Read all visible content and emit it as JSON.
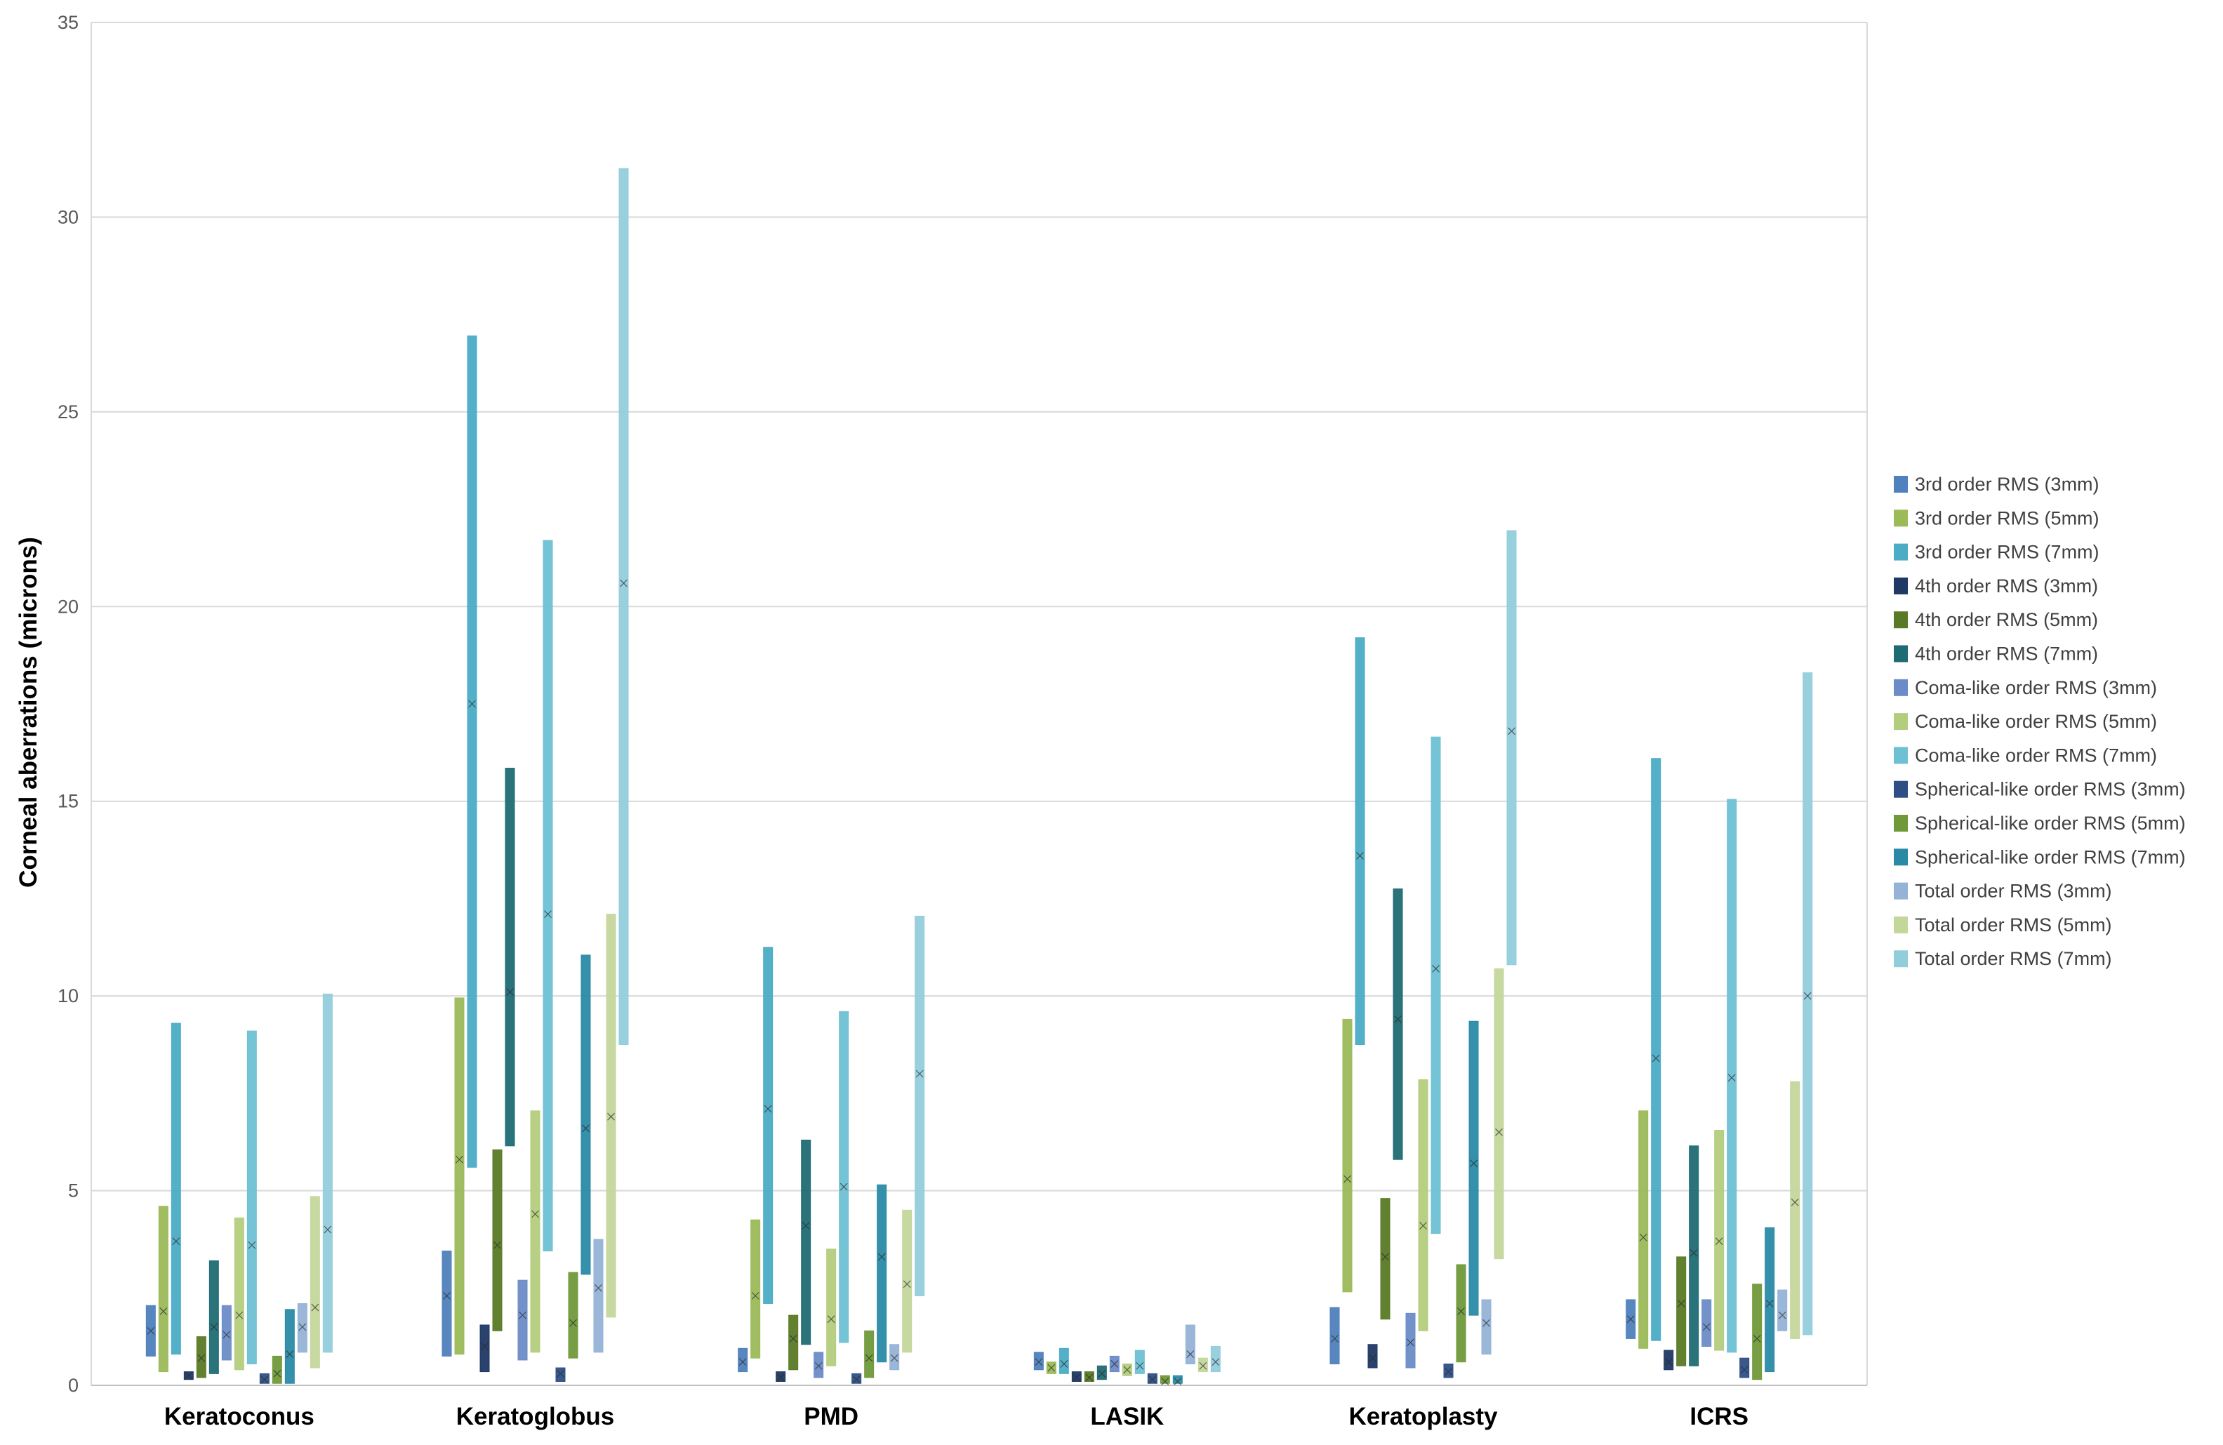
{
  "chart_data": {
    "type": "boxplot",
    "title": "",
    "xlabel": "",
    "ylabel": "Corneal aberrations (microns)",
    "ylim": [
      0,
      35
    ],
    "yticks": [
      0,
      5,
      10,
      15,
      20,
      25,
      30,
      35
    ],
    "grid": true,
    "legend_position": "right",
    "categories": [
      "Keratoconus",
      "Keratoglobus",
      "PMD",
      "LASIK",
      "Keratoplasty",
      "ICRS"
    ],
    "series": [
      {
        "name": "3rd order RMS (3mm)",
        "color": "#4f81bd",
        "ranges": [
          [
            0.75,
            2.05
          ],
          [
            0.75,
            3.45
          ],
          [
            0.35,
            0.95
          ],
          [
            0.4,
            0.85
          ],
          [
            0.55,
            2.0
          ],
          [
            1.2,
            2.2
          ]
        ],
        "means": [
          1.4,
          2.3,
          0.6,
          0.6,
          1.2,
          1.7
        ]
      },
      {
        "name": "3rd order RMS (5mm)",
        "color": "#9bbb59",
        "ranges": [
          [
            0.35,
            4.6
          ],
          [
            0.8,
            9.95
          ],
          [
            0.7,
            4.25
          ],
          [
            0.3,
            0.6
          ],
          [
            2.4,
            9.4
          ],
          [
            0.95,
            7.05
          ]
        ],
        "means": [
          1.9,
          5.8,
          2.3,
          0.45,
          5.3,
          3.8
        ]
      },
      {
        "name": "3rd order RMS (7mm)",
        "color": "#4bacc6",
        "ranges": [
          [
            0.8,
            9.3
          ],
          [
            5.6,
            26.95
          ],
          [
            2.1,
            11.25
          ],
          [
            0.3,
            0.95
          ],
          [
            8.75,
            19.2
          ],
          [
            1.15,
            16.1
          ]
        ],
        "means": [
          3.7,
          17.5,
          7.1,
          0.55,
          13.6,
          8.4
        ]
      },
      {
        "name": "4th order RMS (3mm)",
        "color": "#1f3864",
        "ranges": [
          [
            0.15,
            0.35
          ],
          [
            0.35,
            1.55
          ],
          [
            0.1,
            0.35
          ],
          [
            0.1,
            0.35
          ],
          [
            0.45,
            1.05
          ],
          [
            0.4,
            0.9
          ]
        ],
        "means": [
          0.25,
          1.0,
          0.2,
          0.2,
          0.7,
          0.6
        ]
      },
      {
        "name": "4th order RMS (5mm)",
        "color": "#5a7a25",
        "ranges": [
          [
            0.2,
            1.25
          ],
          [
            1.4,
            6.05
          ],
          [
            0.4,
            1.8
          ],
          [
            0.1,
            0.35
          ],
          [
            1.7,
            4.8
          ],
          [
            0.5,
            3.3
          ]
        ],
        "means": [
          0.7,
          3.6,
          1.2,
          0.2,
          3.3,
          2.1
        ]
      },
      {
        "name": "4th order RMS (7mm)",
        "color": "#1f6b73",
        "ranges": [
          [
            0.3,
            3.2
          ],
          [
            6.15,
            15.85
          ],
          [
            1.05,
            6.3
          ],
          [
            0.15,
            0.5
          ],
          [
            5.8,
            12.75
          ],
          [
            0.5,
            6.15
          ]
        ],
        "means": [
          1.5,
          10.1,
          4.1,
          0.3,
          9.4,
          3.4
        ]
      },
      {
        "name": "Coma-like order RMS (3mm)",
        "color": "#6b8cc7",
        "ranges": [
          [
            0.65,
            2.05
          ],
          [
            0.65,
            2.7
          ],
          [
            0.2,
            0.85
          ],
          [
            0.35,
            0.75
          ],
          [
            0.45,
            1.85
          ],
          [
            1.0,
            2.2
          ]
        ],
        "means": [
          1.3,
          1.8,
          0.5,
          0.55,
          1.1,
          1.5
        ]
      },
      {
        "name": "Coma-like order RMS (5mm)",
        "color": "#b4cd7c",
        "ranges": [
          [
            0.4,
            4.3
          ],
          [
            0.85,
            7.05
          ],
          [
            0.5,
            3.5
          ],
          [
            0.25,
            0.55
          ],
          [
            1.4,
            7.85
          ],
          [
            0.9,
            6.55
          ]
        ],
        "means": [
          1.8,
          4.4,
          1.7,
          0.4,
          4.1,
          3.7
        ]
      },
      {
        "name": "Coma-like order RMS (7mm)",
        "color": "#6ec1d4",
        "ranges": [
          [
            0.55,
            9.1
          ],
          [
            3.45,
            21.7
          ],
          [
            1.1,
            9.6
          ],
          [
            0.3,
            0.9
          ],
          [
            3.9,
            16.65
          ],
          [
            0.85,
            15.05
          ]
        ],
        "means": [
          3.6,
          12.1,
          5.1,
          0.5,
          10.7,
          7.9
        ]
      },
      {
        "name": "Spherical-like order RMS (3mm)",
        "color": "#2e4f86",
        "ranges": [
          [
            0.05,
            0.3
          ],
          [
            0.1,
            0.45
          ],
          [
            0.05,
            0.3
          ],
          [
            0.05,
            0.3
          ],
          [
            0.2,
            0.55
          ],
          [
            0.2,
            0.7
          ]
        ],
        "means": [
          0.15,
          0.3,
          0.15,
          0.15,
          0.35,
          0.4
        ]
      },
      {
        "name": "Spherical-like order RMS (5mm)",
        "color": "#70993a",
        "ranges": [
          [
            0.05,
            0.75
          ],
          [
            0.7,
            2.9
          ],
          [
            0.2,
            1.4
          ],
          [
            0.05,
            0.25
          ],
          [
            0.6,
            3.1
          ],
          [
            0.15,
            2.6
          ]
        ],
        "means": [
          0.3,
          1.6,
          0.7,
          0.1,
          1.9,
          1.2
        ]
      },
      {
        "name": "Spherical-like order RMS (7mm)",
        "color": "#2a8aa6",
        "ranges": [
          [
            0.05,
            1.95
          ],
          [
            2.85,
            11.05
          ],
          [
            0.6,
            5.15
          ],
          [
            0.05,
            0.25
          ],
          [
            1.8,
            9.35
          ],
          [
            0.35,
            4.05
          ]
        ],
        "means": [
          0.8,
          6.6,
          3.3,
          0.1,
          5.7,
          2.1
        ]
      },
      {
        "name": "Total order RMS (3mm)",
        "color": "#95b3d7",
        "ranges": [
          [
            0.85,
            2.1
          ],
          [
            0.85,
            3.75
          ],
          [
            0.4,
            1.05
          ],
          [
            0.55,
            1.55
          ],
          [
            0.8,
            2.2
          ],
          [
            1.4,
            2.45
          ]
        ],
        "means": [
          1.5,
          2.5,
          0.7,
          0.8,
          1.6,
          1.8
        ]
      },
      {
        "name": "Total order RMS (5mm)",
        "color": "#c4d79b",
        "ranges": [
          [
            0.45,
            4.85
          ],
          [
            1.75,
            12.1
          ],
          [
            0.85,
            4.5
          ],
          [
            0.35,
            0.7
          ],
          [
            3.25,
            10.7
          ],
          [
            1.2,
            7.8
          ]
        ],
        "means": [
          2.0,
          6.9,
          2.6,
          0.5,
          6.5,
          4.7
        ]
      },
      {
        "name": "Total order RMS (7mm)",
        "color": "#92cddc",
        "ranges": [
          [
            0.85,
            10.05
          ],
          [
            8.75,
            31.25
          ],
          [
            2.3,
            12.05
          ],
          [
            0.35,
            1.0
          ],
          [
            10.8,
            21.95
          ],
          [
            1.3,
            18.3
          ]
        ],
        "means": [
          4.0,
          20.6,
          8.0,
          0.6,
          16.8,
          10.0
        ]
      }
    ]
  }
}
